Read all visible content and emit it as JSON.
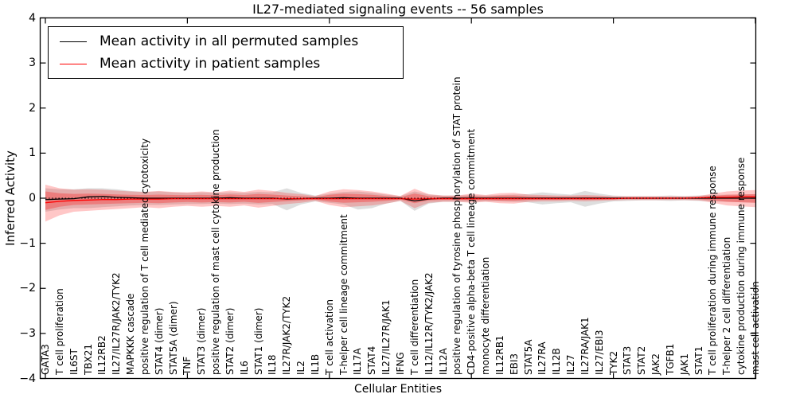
{
  "chart_data": {
    "type": "line",
    "title": "IL27-mediated signaling events -- 56 samples",
    "xlabel": "Cellular Entities",
    "ylabel": "Inferred Activity",
    "ylim": [
      -4,
      4
    ],
    "yticks": [
      4,
      3,
      2,
      1,
      0,
      -1,
      -2,
      -3,
      -4
    ],
    "ytick_labels": [
      "4",
      "3",
      "2",
      "1",
      "0",
      "−1",
      "−2",
      "−3",
      "−4"
    ],
    "xtick_indices": [
      0,
      10,
      20,
      30,
      40,
      50
    ],
    "grid": false,
    "legend_position": "upper left",
    "colors": {
      "permuted_line": "#000000",
      "patient_line": "#ff0000",
      "permuted_band": "rgba(0,0,0,0.13)",
      "patient_band": "rgba(255,0,0,0.22)",
      "patient_band_inner": "rgba(255,0,0,0.28)",
      "zero_line": "#000000"
    },
    "categories": [
      "GATA3",
      "T cell proliferation",
      "IL6ST",
      "TBX21",
      "IL12RB2",
      "IL27/IL27R/JAK2/TYK2",
      "MAPKKK cascade",
      "positive regulation of T cell mediated cytotoxicity",
      "STAT4 (dimer)",
      "STAT5A (dimer)",
      "TNF",
      "STAT3 (dimer)",
      "positive regulation of mast cell cytokine production",
      "STAT2 (dimer)",
      "IL6",
      "STAT1 (dimer)",
      "IL18",
      "IL27R/JAK2/TYK2",
      "IL2",
      "IL1B",
      "T cell activation",
      "T-helper cell lineage commitment",
      "IL17A",
      "STAT4",
      "IL27/IL27R/JAK1",
      "IFNG",
      "T cell differentiation",
      "IL12/IL12R/TYK2/JAK2",
      "IL12A",
      "positive regulation of tyrosine phosphorylation of STAT protein",
      "CD4-positive alpha-beta T cell lineage commitment",
      "monocyte differentiation",
      "IL12RB1",
      "EBI3",
      "STAT5A",
      "IL27RA",
      "IL12B",
      "IL27",
      "IL27RA/JAK1",
      "IL27/EBI3",
      "TYK2",
      "STAT3",
      "STAT2",
      "JAK2",
      "TGFB1",
      "JAK1",
      "STAT1",
      "T cell proliferation during immune response",
      "T-helper 2 cell differentiation",
      "cytokine production during immune response",
      "mast cell activation"
    ],
    "series": [
      {
        "name": "Mean activity in all permuted samples",
        "color": "#000000",
        "values": [
          -0.03,
          -0.02,
          -0.01,
          0.03,
          0.04,
          0.02,
          0.01,
          0,
          0,
          0,
          0,
          0,
          0,
          0.01,
          0,
          0,
          0,
          -0.02,
          -0.01,
          0,
          0,
          0.01,
          0,
          0,
          0,
          0,
          -0.06,
          -0.02,
          0,
          0,
          0,
          0,
          0,
          0,
          0,
          0,
          0,
          0,
          0,
          0,
          0,
          0,
          0,
          0,
          0,
          0,
          0,
          0,
          0,
          0,
          0
        ]
      },
      {
        "name": "Mean activity in patient samples",
        "color": "#ff0000",
        "values": [
          -0.1,
          -0.07,
          -0.05,
          -0.04,
          -0.03,
          -0.03,
          -0.02,
          -0.02,
          -0.02,
          -0.01,
          -0.01,
          -0.01,
          -0.01,
          -0.01,
          -0.01,
          -0.01,
          -0.01,
          -0.01,
          -0.01,
          -0.01,
          -0.01,
          -0.01,
          -0.01,
          -0.01,
          -0.01,
          -0.01,
          -0.02,
          -0.01,
          -0.01,
          -0.01,
          -0.01,
          -0.01,
          -0.01,
          -0.01,
          -0.01,
          -0.01,
          -0.01,
          -0.01,
          -0.01,
          -0.01,
          -0.01,
          0,
          0,
          0,
          0,
          0,
          0.01,
          0.02,
          0.02,
          0.03,
          0.03
        ]
      }
    ],
    "bands": [
      {
        "name": "permuted-samples-std",
        "color_key": "permuted_band",
        "upper": [
          0.22,
          0.2,
          0.2,
          0.22,
          0.22,
          0.2,
          0.16,
          0.14,
          0.15,
          0.13,
          0.12,
          0.13,
          0.12,
          0.13,
          0.12,
          0.14,
          0.13,
          0.22,
          0.12,
          0.06,
          0.1,
          0.14,
          0.15,
          0.12,
          0.08,
          0.05,
          0.15,
          0.08,
          0.06,
          0.06,
          0.07,
          0.06,
          0.07,
          0.08,
          0.09,
          0.13,
          0.1,
          0.08,
          0.16,
          0.1,
          0.06,
          0.05,
          0.05,
          0.05,
          0.06,
          0.05,
          0.06,
          0.07,
          0.08,
          0.08,
          0.09
        ],
        "lower": [
          -0.3,
          -0.25,
          -0.22,
          -0.22,
          -0.2,
          -0.18,
          -0.16,
          -0.15,
          -0.15,
          -0.14,
          -0.13,
          -0.13,
          -0.12,
          -0.13,
          -0.12,
          -0.14,
          -0.13,
          -0.27,
          -0.14,
          -0.07,
          -0.1,
          -0.14,
          -0.25,
          -0.22,
          -0.12,
          -0.06,
          -0.28,
          -0.12,
          -0.08,
          -0.08,
          -0.08,
          -0.07,
          -0.07,
          -0.08,
          -0.09,
          -0.14,
          -0.11,
          -0.09,
          -0.19,
          -0.12,
          -0.07,
          -0.06,
          -0.05,
          -0.05,
          -0.06,
          -0.05,
          -0.06,
          -0.07,
          -0.08,
          -0.09,
          -0.1
        ]
      },
      {
        "name": "patient-samples-std",
        "color_key": "patient_band",
        "upper": [
          0.3,
          0.22,
          0.19,
          0.2,
          0.19,
          0.17,
          0.15,
          0.14,
          0.16,
          0.14,
          0.13,
          0.15,
          0.13,
          0.17,
          0.14,
          0.19,
          0.16,
          0.12,
          0.09,
          0.05,
          0.15,
          0.2,
          0.18,
          0.15,
          0.1,
          0.05,
          0.21,
          0.09,
          0.06,
          0.06,
          0.1,
          0.07,
          0.11,
          0.12,
          0.08,
          0.07,
          0.06,
          0.06,
          0.07,
          0.06,
          0.04,
          0.04,
          0.04,
          0.04,
          0.04,
          0.04,
          0.05,
          0.1,
          0.15,
          0.17,
          0.18
        ],
        "lower": [
          -0.52,
          -0.38,
          -0.3,
          -0.28,
          -0.26,
          -0.24,
          -0.22,
          -0.2,
          -0.22,
          -0.19,
          -0.17,
          -0.19,
          -0.17,
          -0.19,
          -0.16,
          -0.21,
          -0.17,
          -0.13,
          -0.1,
          -0.06,
          -0.15,
          -0.2,
          -0.18,
          -0.16,
          -0.12,
          -0.06,
          -0.22,
          -0.1,
          -0.08,
          -0.08,
          -0.1,
          -0.08,
          -0.11,
          -0.12,
          -0.08,
          -0.07,
          -0.07,
          -0.06,
          -0.07,
          -0.06,
          -0.05,
          -0.04,
          -0.04,
          -0.04,
          -0.04,
          -0.04,
          -0.05,
          -0.1,
          -0.16,
          -0.18,
          -0.2
        ]
      }
    ],
    "inner_band_scale": 0.5,
    "zero_line": {
      "y": 0,
      "style": "dotted"
    }
  },
  "legend": {
    "entries": [
      {
        "label": "Mean activity in all permuted samples",
        "color": "#000000"
      },
      {
        "label": "Mean activity in patient samples",
        "color": "#ff0000"
      }
    ]
  }
}
